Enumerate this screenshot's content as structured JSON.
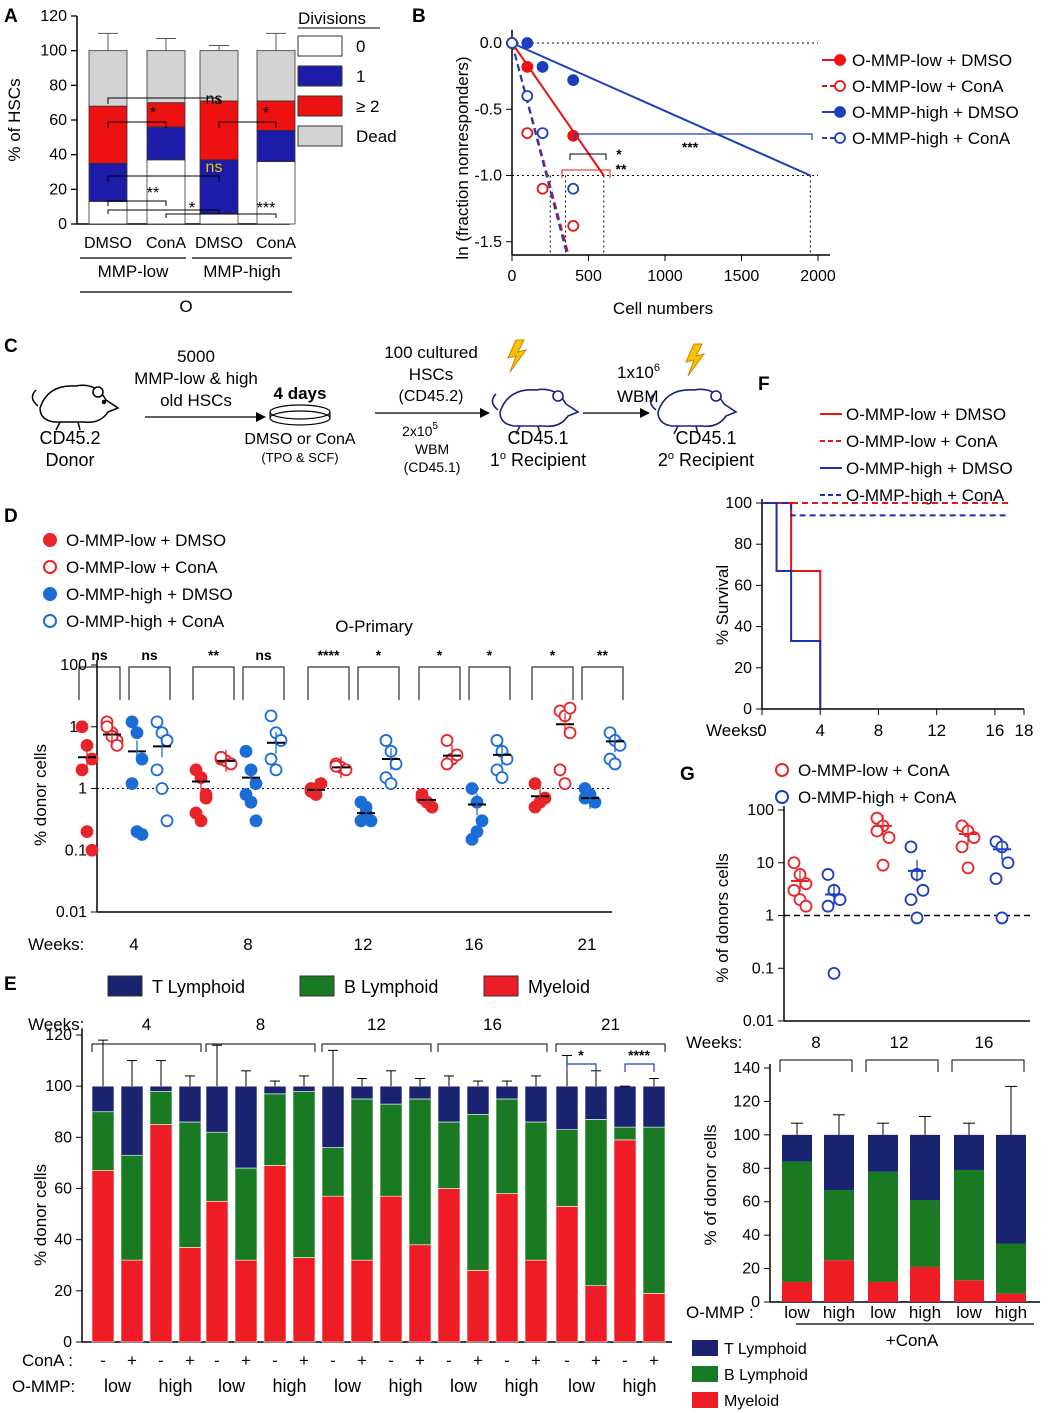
{
  "panels": {
    "a": "A",
    "b": "B",
    "c": "C",
    "d": "D",
    "e": "E",
    "f": "F",
    "g": "G"
  },
  "chart_data": [
    {
      "id": "A",
      "type": "bar",
      "stacked": true,
      "ylabel": "% of HSCs",
      "ylim": [
        0,
        120
      ],
      "yticks": [
        "0",
        "20",
        "40",
        "60",
        "80",
        "100",
        "120"
      ],
      "categories": [
        "DMSO",
        "ConA",
        "DMSO",
        "ConA"
      ],
      "groups": [
        "MMP-low",
        "MMP-high"
      ],
      "group_label": "O",
      "legend_title": "Divisions",
      "series": [
        {
          "name": "0",
          "color": "#ffffff",
          "values": [
            13,
            37,
            6,
            36
          ]
        },
        {
          "name": "1",
          "color": "#1c1ca8",
          "values": [
            22,
            19,
            31,
            18
          ]
        },
        {
          "name": "≥ 2",
          "color": "#ee1111",
          "values": [
            33,
            14,
            34,
            17
          ]
        },
        {
          "name": "Dead",
          "color": "#d3d3d3",
          "values": [
            32,
            30,
            29,
            29
          ]
        }
      ],
      "errors": [
        10,
        7,
        3,
        10
      ],
      "annotations": [
        "*",
        "ns",
        "*",
        "ns",
        "**",
        "*",
        "***"
      ]
    },
    {
      "id": "B",
      "type": "line",
      "xlabel": "Cell numbers",
      "ylabel": "ln (fraction nonresponders)",
      "xlim": [
        0,
        2000
      ],
      "ylim": [
        -1.6,
        0
      ],
      "xticks": [
        "0",
        "500",
        "1000",
        "1500",
        "2000"
      ],
      "yticks": [
        "0.0",
        "-0.5",
        "-1.0",
        "-1.5"
      ],
      "series": [
        {
          "name": "O-MMP-low + DMSO",
          "color": "#ee1111",
          "style": "solid",
          "marker": "filled",
          "points": [
            [
              0,
              0
            ],
            [
              100,
              -0.18
            ],
            [
              400,
              -0.7
            ]
          ],
          "fit": [
            [
              0,
              0
            ],
            [
              600,
              -1.0
            ]
          ]
        },
        {
          "name": "O-MMP-low + ConA",
          "color": "#ee1111",
          "style": "dashed",
          "marker": "open",
          "points": [
            [
              0,
              0
            ],
            [
              100,
              -0.68
            ],
            [
              200,
              -1.1
            ],
            [
              400,
              -1.38
            ]
          ],
          "fit": [
            [
              0,
              0
            ],
            [
              370,
              -1.6
            ]
          ]
        },
        {
          "name": "O-MMP-high + DMSO",
          "color": "#1c3fbf",
          "style": "solid",
          "marker": "filled",
          "points": [
            [
              0,
              0
            ],
            [
              100,
              0
            ],
            [
              200,
              -0.18
            ],
            [
              400,
              -0.28
            ]
          ],
          "fit": [
            [
              0,
              0
            ],
            [
              1950,
              -1.0
            ]
          ]
        },
        {
          "name": "O-MMP-high + ConA",
          "color": "#1c3fbf",
          "style": "dashed",
          "marker": "open",
          "points": [
            [
              0,
              0
            ],
            [
              100,
              -0.4
            ],
            [
              200,
              -0.68
            ],
            [
              400,
              -1.1
            ]
          ],
          "fit": [
            [
              0,
              0
            ],
            [
              360,
              -1.6
            ]
          ]
        }
      ],
      "annotations": [
        "***",
        "*",
        "**"
      ]
    },
    {
      "id": "D",
      "type": "scatter",
      "title": "O-Primary",
      "ylabel": "% donor cells",
      "log_y": true,
      "yticks": [
        "0.01",
        "0.1",
        "1",
        "10",
        "100"
      ],
      "x_title": "Weeks:",
      "categories": [
        "4",
        "8",
        "12",
        "16",
        "21"
      ],
      "series": [
        {
          "name": "O-MMP-low + DMSO",
          "color": "#e8242a",
          "marker": "filled",
          "values": [
            [
              10,
              5,
              3,
              2,
              0.2,
              0.1
            ],
            [
              2,
              1.5,
              0.8,
              0.4,
              0.3,
              0.7
            ],
            [
              1,
              0.8,
              1.2,
              0.9
            ],
            [
              0.7,
              0.6,
              0.5,
              0.8
            ],
            [
              1.2,
              0.6,
              0.7,
              0.5
            ]
          ],
          "mean": [
            3.2,
            1.3,
            0.95,
            0.65,
            0.75
          ]
        },
        {
          "name": "O-MMP-low + ConA",
          "color": "#e8242a",
          "marker": "open",
          "values": [
            [
              12,
              8,
              6,
              10,
              7,
              5
            ],
            [
              3,
              2.8,
              2.5,
              3.2
            ],
            [
              2.5,
              2.2,
              2,
              2.3
            ],
            [
              6,
              3,
              3.5,
              2.5
            ],
            [
              18,
              15,
              8,
              2,
              1.2,
              20
            ]
          ],
          "mean": [
            7.5,
            2.8,
            2.2,
            3.4,
            11
          ]
        },
        {
          "name": "O-MMP-high + DMSO",
          "color": "#1a6dd6",
          "marker": "filled",
          "values": [
            [
              12,
              8,
              3,
              1.2,
              0.2,
              0.18
            ],
            [
              4,
              2,
              1.2,
              0.8,
              0.6,
              0.3
            ],
            [
              0.6,
              0.4,
              0.3,
              0.3,
              0.5
            ],
            [
              1,
              0.6,
              0.3,
              0.15,
              0.2
            ],
            [
              1,
              0.8,
              0.6,
              0.7
            ]
          ],
          "mean": [
            4,
            1.5,
            0.4,
            0.55,
            0.7
          ]
        },
        {
          "name": "O-MMP-high + ConA",
          "color": "#1a6dd6",
          "marker": "open",
          "values": [
            [
              12,
              8,
              6,
              2,
              1,
              0.3
            ],
            [
              15,
              8,
              6,
              3,
              2
            ],
            [
              6,
              4,
              2.5,
              1.5,
              1.2
            ],
            [
              6,
              4,
              3,
              2,
              1.5
            ],
            [
              8,
              6,
              5,
              3,
              2.5
            ]
          ],
          "mean": [
            4.8,
            5.5,
            3,
            3.5,
            5.8
          ]
        }
      ],
      "reference_line": 1,
      "significance": [
        "ns",
        "ns",
        "**",
        "ns",
        "****",
        "*",
        "*",
        "*",
        "*",
        "**"
      ]
    },
    {
      "id": "E",
      "type": "bar",
      "stacked": true,
      "ylabel": "% donor cells",
      "ylim": [
        0,
        120
      ],
      "yticks": [
        "0",
        "20",
        "40",
        "60",
        "80",
        "100",
        "120"
      ],
      "weeks": [
        "4",
        "8",
        "12",
        "16",
        "21"
      ],
      "conA": [
        "-",
        "+",
        "-",
        "+"
      ],
      "omm_p": [
        "low",
        "high"
      ],
      "row_labels": {
        "weeks": "Weeks:",
        "conA": "ConA :",
        "ommp": "O-MMP:"
      },
      "legend": [
        "T Lymphoid",
        "B Lymphoid",
        "Myeloid"
      ],
      "colors": {
        "t": "#1a2370",
        "b": "#1a7a24",
        "m": "#ee1c24"
      },
      "myeloid": [
        67,
        32,
        85,
        37,
        55,
        32,
        69,
        33,
        57,
        32,
        57,
        38,
        60,
        28,
        58,
        32,
        53,
        22,
        79,
        19
      ],
      "b_lymphoid": [
        23,
        41,
        13,
        49,
        27,
        36,
        28,
        65,
        19,
        63,
        36,
        57,
        26,
        61,
        37,
        54,
        30,
        65,
        5,
        65
      ],
      "t_lymphoid": [
        10,
        27,
        2,
        14,
        18,
        32,
        3,
        2,
        24,
        5,
        7,
        5,
        14,
        11,
        5,
        14,
        17,
        13,
        16,
        16
      ],
      "significance": [
        "*",
        "****"
      ]
    },
    {
      "id": "F",
      "type": "line",
      "ylabel": "% Survival",
      "ylim": [
        0,
        100
      ],
      "yticks": [
        "0",
        "20",
        "40",
        "60",
        "80",
        "100"
      ],
      "xlabel": "Weeks:",
      "xticks": [
        "0",
        "4",
        "8",
        "12",
        "16",
        "18"
      ],
      "series": [
        {
          "name": "O-MMP-low + DMSO",
          "color": "#ee1111",
          "style": "solid",
          "points": [
            [
              0,
              100
            ],
            [
              2,
              100
            ],
            [
              2,
              67
            ],
            [
              4,
              67
            ],
            [
              4,
              0
            ]
          ]
        },
        {
          "name": "O-MMP-low + ConA",
          "color": "#ee1111",
          "style": "dashed",
          "points": [
            [
              0,
              100
            ],
            [
              17,
              100
            ]
          ]
        },
        {
          "name": "O-MMP-high + DMSO",
          "color": "#1c2fb0",
          "style": "solid",
          "points": [
            [
              0,
              100
            ],
            [
              1,
              100
            ],
            [
              1,
              67
            ],
            [
              2,
              67
            ],
            [
              2,
              33
            ],
            [
              4,
              33
            ],
            [
              4,
              0
            ]
          ]
        },
        {
          "name": "O-MMP-high + ConA",
          "color": "#1c2fb0",
          "style": "dashed",
          "points": [
            [
              0,
              100
            ],
            [
              2,
              100
            ],
            [
              2,
              94
            ],
            [
              17,
              94
            ]
          ]
        }
      ]
    },
    {
      "id": "G-top",
      "type": "scatter",
      "ylabel": "% of donors cells",
      "log_y": true,
      "yticks": [
        "0.01",
        "0.1",
        "1",
        "10",
        "100"
      ],
      "x_title": "Weeks:",
      "categories": [
        "8",
        "12",
        "16"
      ],
      "series": [
        {
          "name": "O-MMP-low + ConA",
          "color": "#e8242a",
          "marker": "open",
          "values": [
            [
              10,
              6,
              4,
              3,
              2,
              1.5
            ],
            [
              70,
              50,
              30,
              40,
              9
            ],
            [
              50,
              40,
              30,
              20,
              8
            ]
          ],
          "mean": [
            4.5,
            50,
            35
          ]
        },
        {
          "name": "O-MMP-high + ConA",
          "color": "#1c3fbf",
          "marker": "open",
          "values": [
            [
              6,
              3,
              2,
              1.5,
              0.08
            ],
            [
              20,
              6,
              3,
              2,
              0.9
            ],
            [
              25,
              20,
              10,
              5,
              0.9
            ]
          ],
          "mean": [
            2.5,
            7,
            18
          ]
        }
      ],
      "reference_line": 1
    },
    {
      "id": "G-bottom",
      "type": "bar",
      "stacked": true,
      "ylabel": "% of donor cells",
      "ylim": [
        0,
        140
      ],
      "yticks": [
        "0",
        "20",
        "40",
        "60",
        "80",
        "100",
        "120",
        "140"
      ],
      "categories": [
        "low",
        "high",
        "low",
        "high",
        "low",
        "high"
      ],
      "row_label": "O-MMP :",
      "group_label": "+ConA",
      "legend": [
        "T Lymphoid",
        "B Lymphoid",
        "Myeloid"
      ],
      "myeloid": [
        12,
        25,
        12,
        21,
        13,
        5
      ],
      "b_lymphoid": [
        72,
        42,
        66,
        40,
        66,
        30
      ],
      "t_lymphoid": [
        16,
        33,
        22,
        39,
        21,
        65
      ]
    }
  ],
  "panelC": {
    "donor": "CD45.2",
    "donor2": "Donor",
    "step1a": "5000",
    "step1b": "MMP-low & high",
    "step1c": "old HSCs",
    "days": "4 days",
    "treat": "DMSO or ConA",
    "media": "(TPO & SCF)",
    "cult1": "100 cultured",
    "cult2": "HSCs",
    "cult3": "(CD45.2)",
    "wbm1": "2x10",
    "wbm1sup": "5",
    "wbm2": "WBM",
    "wbm3": "(CD45.1)",
    "rec1a": "CD45.1",
    "rec1b": "1",
    "rec1sup": "o",
    "rec1c": " Recipient",
    "xfer1": "1x10",
    "xfersup": "6",
    "xfer2": "WBM",
    "rec2a": "CD45.1",
    "rec2b": "2",
    "rec2sup": "o",
    "rec2c": " Recipient"
  },
  "colors": {
    "red": "#ee1111",
    "blue": "#1c3fbf",
    "navy": "#1a2370",
    "green": "#1a7a24",
    "grey": "#d3d3d3",
    "yellow": "#f5c400"
  }
}
